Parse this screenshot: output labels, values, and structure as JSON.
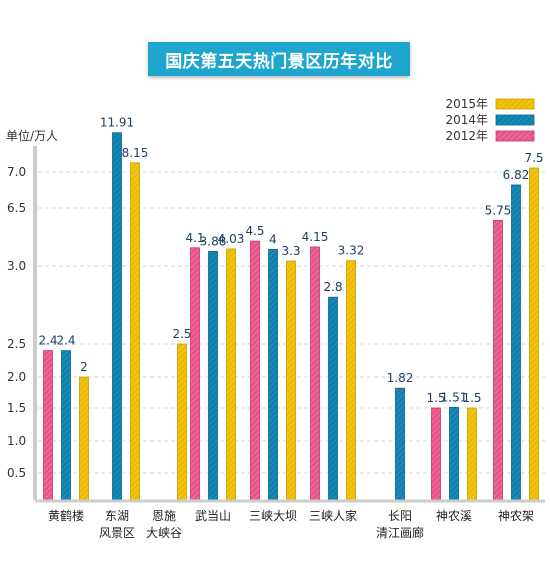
{
  "chart_data": {
    "type": "bar",
    "title": "国庆第五天热门景区历年对比",
    "ylabel": "单位/万人",
    "y_ticks": [
      "0.5",
      "1.0",
      "1.5",
      "2.0",
      "2.5",
      "3.0",
      "6.5",
      "7.0"
    ],
    "categories": [
      [
        "黄鹤楼"
      ],
      [
        "东湖",
        "风景区"
      ],
      [
        "恩施",
        "大峡谷"
      ],
      [
        "武当山"
      ],
      [
        "三峡大坝"
      ],
      [
        "三峡人家"
      ],
      [
        "长阳",
        "清江画廊"
      ],
      [
        "神农溪"
      ],
      [
        "神农架"
      ]
    ],
    "series": [
      {
        "name": "2012年",
        "color": "#e8538a",
        "values": [
          2.4,
          null,
          null,
          4.1,
          4.5,
          4.15,
          null,
          1.5,
          5.75
        ],
        "labels": [
          "2.4",
          "",
          "",
          "4.1",
          "4.5",
          "4.15",
          "",
          "1.5",
          "5.75"
        ]
      },
      {
        "name": "2014年",
        "color": "#0f80ad",
        "values": [
          2.4,
          11.91,
          null,
          3.88,
          4,
          2.8,
          1.82,
          1.51,
          6.82
        ],
        "labels": [
          "2.4",
          "11.91",
          "",
          "3.88",
          "4",
          "2.8",
          "1.82",
          "1.51",
          "6.82"
        ]
      },
      {
        "name": "2015年",
        "color": "#f2c20c",
        "values": [
          2,
          8.15,
          2.5,
          4.03,
          3.3,
          3.32,
          null,
          1.5,
          7.5
        ],
        "labels": [
          "2",
          "8.15",
          "2.5",
          "4.03",
          "3.3",
          "3.32",
          "",
          "1.5",
          "7.5"
        ]
      }
    ],
    "legend_order": [
      "2015年",
      "2014年",
      "2012年"
    ],
    "legend_position": "top-right",
    "y_scale": "broken"
  }
}
